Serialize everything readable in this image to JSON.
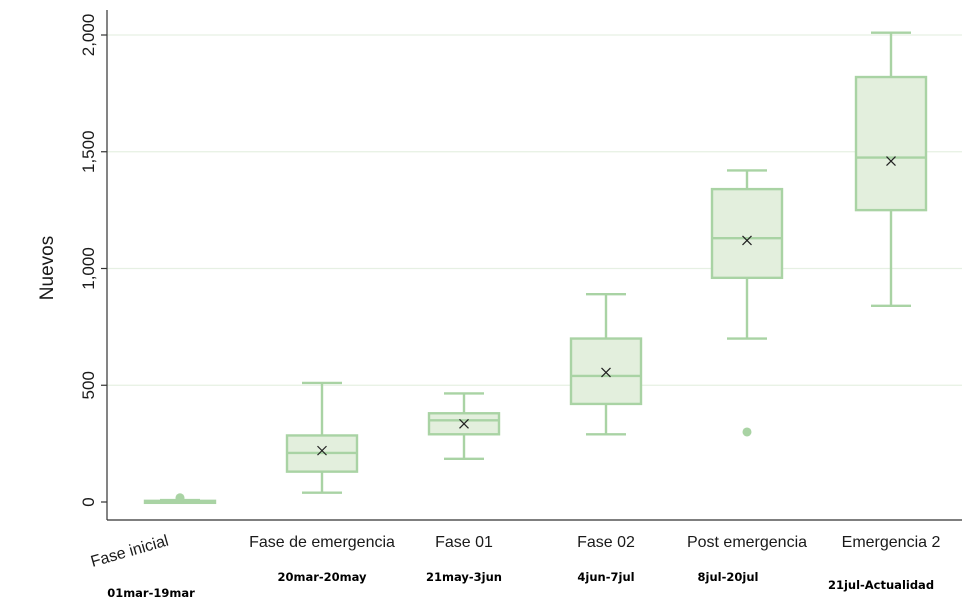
{
  "chart_data": {
    "type": "box",
    "title": "",
    "xlabel": "",
    "ylabel": "Nuevos",
    "ylim": [
      -70,
      2110
    ],
    "yticks": [
      0,
      500,
      1000,
      1500,
      2000
    ],
    "ytick_labels": [
      "0",
      "500",
      "1,000",
      "1,500",
      "2,000"
    ],
    "grid": true,
    "colors": {
      "box_fill": "#e3efdd",
      "box_stroke": "#a9d3a4",
      "grid": "#e6f0e3",
      "axis": "#333333",
      "mean_marker": "#222222"
    },
    "categories": [
      {
        "label": "Fase inicial",
        "date": "01mar-19mar",
        "whisker_low": 0,
        "q1": 0,
        "median": 2,
        "q3": 5,
        "whisker_high": 8,
        "mean": 3,
        "outliers": [
          12,
          18
        ]
      },
      {
        "label": "Fase de emergencia",
        "date": "20mar-20may",
        "whisker_low": 40,
        "q1": 130,
        "median": 210,
        "q3": 285,
        "whisker_high": 510,
        "mean": 220,
        "outliers": []
      },
      {
        "label": "Fase 01",
        "date": "21may-3jun",
        "whisker_low": 185,
        "q1": 290,
        "median": 350,
        "q3": 380,
        "whisker_high": 465,
        "mean": 335,
        "outliers": []
      },
      {
        "label": "Fase 02",
        "date": "4jun-7jul",
        "whisker_low": 290,
        "q1": 420,
        "median": 540,
        "q3": 700,
        "whisker_high": 890,
        "mean": 555,
        "outliers": []
      },
      {
        "label": "Post emergencia",
        "date": "8jul-20jul",
        "whisker_low": 700,
        "q1": 960,
        "median": 1130,
        "q3": 1340,
        "whisker_high": 1420,
        "mean": 1120,
        "outliers": [
          300
        ]
      },
      {
        "label": "Emergencia 2",
        "date": "21jul-Actualidad",
        "whisker_low": 840,
        "q1": 1250,
        "median": 1475,
        "q3": 1820,
        "whisker_high": 2010,
        "mean": 1460,
        "outliers": []
      }
    ]
  }
}
